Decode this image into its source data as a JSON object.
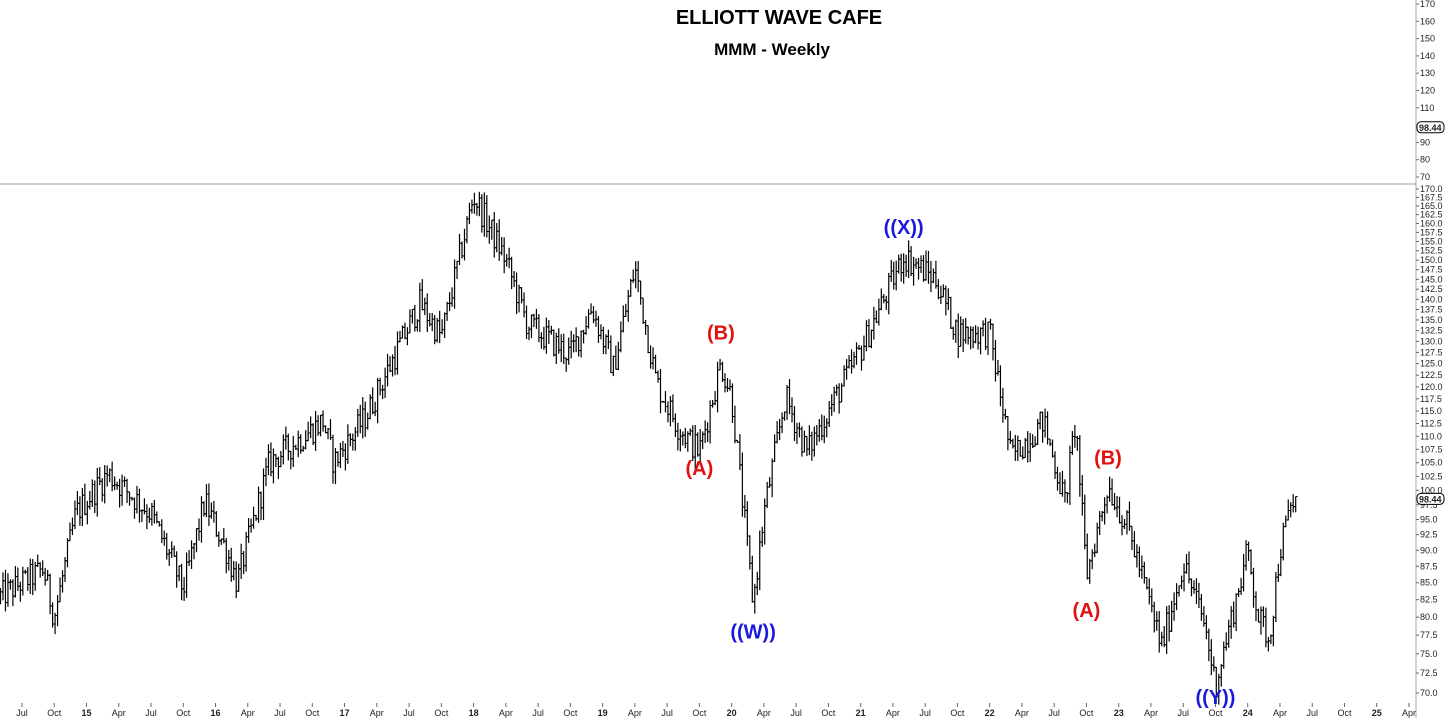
{
  "header": {
    "title": "ELLIOTT WAVE CAFE",
    "subtitle": "MMM - Weekly"
  },
  "colors": {
    "blue_label": "#1a1adc",
    "red_label": "#e01010",
    "price": "#000000"
  },
  "chart_data": {
    "type": "bar",
    "subtype": "ohlc",
    "title": "ELLIOTT WAVE CAFE",
    "subtitle": "MMM - Weekly",
    "last_price": "98.44",
    "upper_panel": {
      "ylim": [
        70,
        170
      ],
      "y_ticks": [
        70,
        80,
        90,
        100,
        110,
        120,
        130,
        140,
        150,
        160,
        170
      ]
    },
    "main_panel": {
      "ylim": [
        70,
        170
      ],
      "scale": "log",
      "y_ticks": [
        70,
        72.5,
        75,
        77.5,
        80,
        82.5,
        85,
        87.5,
        90,
        92.5,
        95,
        97.5,
        100,
        102.5,
        105,
        107.5,
        110,
        112.5,
        115,
        117.5,
        120,
        122.5,
        125,
        127.5,
        130,
        132.5,
        135,
        137.5,
        140,
        142.5,
        145,
        147.5,
        150,
        152.5,
        155,
        157.5,
        160,
        162.5,
        165,
        167.5,
        170
      ],
      "y_tick_labels": [
        "70.0",
        "72.5",
        "75.0",
        "77.5",
        "80.0",
        "82.5",
        "85.0",
        "87.5",
        "90.0",
        "92.5",
        "95.0",
        "97.5",
        "100.0",
        "102.5",
        "105.0",
        "107.5",
        "110.0",
        "112.5",
        "115.0",
        "117.5",
        "120.0",
        "122.5",
        "125.0",
        "127.5",
        "130.0",
        "132.5",
        "135.0",
        "137.5",
        "140.0",
        "142.5",
        "145.0",
        "147.5",
        "150.0",
        "152.5",
        "155.0",
        "157.5",
        "160.0",
        "162.5",
        "165.0",
        "167.5",
        "170.0"
      ]
    },
    "x_ticks": [
      "Jul",
      "Oct",
      "15",
      "Apr",
      "Jul",
      "Oct",
      "16",
      "Apr",
      "Jul",
      "Oct",
      "17",
      "Apr",
      "Jul",
      "Oct",
      "18",
      "Apr",
      "Jul",
      "Oct",
      "19",
      "Apr",
      "Jul",
      "Oct",
      "20",
      "Apr",
      "Jul",
      "Oct",
      "21",
      "Apr",
      "Jul",
      "Oct",
      "22",
      "Apr",
      "Jul",
      "Oct",
      "23",
      "Apr",
      "Jul",
      "Oct",
      "24",
      "Apr",
      "Jul",
      "Oct",
      "25",
      "Apr"
    ],
    "x_tick_dates": [
      "2014-07",
      "2014-10",
      "2015-01",
      "2015-04",
      "2015-07",
      "2015-10",
      "2016-01",
      "2016-04",
      "2016-07",
      "2016-10",
      "2017-01",
      "2017-04",
      "2017-07",
      "2017-10",
      "2018-01",
      "2018-04",
      "2018-07",
      "2018-10",
      "2019-01",
      "2019-04",
      "2019-07",
      "2019-10",
      "2020-01",
      "2020-04",
      "2020-07",
      "2020-10",
      "2021-01",
      "2021-04",
      "2021-07",
      "2021-10",
      "2022-01",
      "2022-04",
      "2022-07",
      "2022-10",
      "2023-01",
      "2023-04",
      "2023-07",
      "2023-10",
      "2024-01",
      "2024-04",
      "2024-07",
      "2024-10",
      "2025-01",
      "2025-04"
    ],
    "price_path": [
      [
        "2014-05",
        83
      ],
      [
        "2014-09",
        87
      ],
      [
        "2014-10",
        80
      ],
      [
        "2014-12",
        96
      ],
      [
        "2015-03",
        103
      ],
      [
        "2015-07",
        96
      ],
      [
        "2015-09",
        88
      ],
      [
        "2015-10",
        84
      ],
      [
        "2015-12",
        98
      ],
      [
        "2016-02",
        90
      ],
      [
        "2016-03",
        85
      ],
      [
        "2016-06",
        105
      ],
      [
        "2016-11",
        113
      ],
      [
        "2016-12",
        105
      ],
      [
        "2017-03",
        114
      ],
      [
        "2017-08",
        139
      ],
      [
        "2017-10",
        131
      ],
      [
        "2018-01",
        168
      ],
      [
        "2018-04",
        150
      ],
      [
        "2018-06",
        134
      ],
      [
        "2018-10",
        127
      ],
      [
        "2018-12",
        138
      ],
      [
        "2019-02",
        124
      ],
      [
        "2019-04",
        148
      ],
      [
        "2019-06",
        121
      ],
      [
        "2019-08",
        112
      ],
      [
        "2019-10",
        107
      ],
      [
        "2019-12",
        125
      ],
      [
        "2020-01",
        118
      ],
      [
        "2020-03",
        82
      ],
      [
        "2020-04",
        96
      ],
      [
        "2020-06",
        118
      ],
      [
        "2020-08",
        107
      ],
      [
        "2021-01",
        128
      ],
      [
        "2021-05",
        151
      ],
      [
        "2021-08",
        145
      ],
      [
        "2021-10",
        132
      ],
      [
        "2022-01",
        132
      ],
      [
        "2022-03",
        106
      ],
      [
        "2022-06",
        113
      ],
      [
        "2022-08",
        98
      ],
      [
        "2022-09",
        113
      ],
      [
        "2022-10",
        86
      ],
      [
        "2022-12",
        101
      ],
      [
        "2023-02",
        93
      ],
      [
        "2023-05",
        76
      ],
      [
        "2023-07",
        88
      ],
      [
        "2023-09",
        79
      ],
      [
        "2023-10",
        71
      ],
      [
        "2024-01",
        90
      ],
      [
        "2024-02",
        80
      ],
      [
        "2024-03",
        77
      ],
      [
        "2024-04",
        90
      ],
      [
        "2024-05",
        97
      ],
      [
        "2024-05-20",
        99
      ]
    ],
    "annotations": [
      {
        "text": "(A)",
        "color": "red",
        "date": "2019-10",
        "price": 104
      },
      {
        "text": "(B)",
        "color": "red",
        "date": "2019-12",
        "price": 132
      },
      {
        "text": "((W))",
        "color": "blue",
        "date": "2020-03",
        "price": 78
      },
      {
        "text": "((X))",
        "color": "blue",
        "date": "2021-05",
        "price": 159
      },
      {
        "text": "(A)",
        "color": "red",
        "date": "2022-10",
        "price": 81
      },
      {
        "text": "(B)",
        "color": "red",
        "date": "2022-12",
        "price": 106
      },
      {
        "text": "((Y))",
        "color": "blue",
        "date": "2023-10",
        "price": 69.5
      }
    ]
  }
}
